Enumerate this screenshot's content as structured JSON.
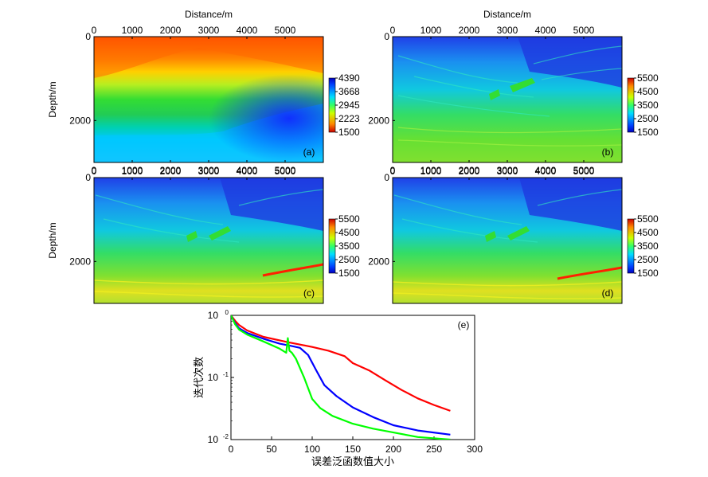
{
  "chart_data": [
    {
      "type": "heatmap",
      "panel_label": "(a)",
      "xlabel": "Distance/m",
      "ylabel": "Depth/m",
      "x_ticks": [
        "0",
        "1000",
        "2000",
        "3000",
        "4000",
        "5000"
      ],
      "y_ticks": [
        "0",
        "2000"
      ],
      "xlim": [
        0,
        6000
      ],
      "ylim": [
        3000,
        0
      ],
      "colorbar_ticks": [
        "4390",
        "3668",
        "2945",
        "2223",
        "1500"
      ],
      "colorbar_range": [
        1500,
        4390
      ],
      "colorbar_reversed": true,
      "colormap": "jet"
    },
    {
      "type": "heatmap",
      "panel_label": "(b)",
      "xlabel": "Distance/m",
      "ylabel": "",
      "x_ticks": [
        "0",
        "1000",
        "2000",
        "3000",
        "4000",
        "5000"
      ],
      "y_ticks": [
        "0",
        "2000"
      ],
      "xlim": [
        0,
        6000
      ],
      "ylim": [
        3000,
        0
      ],
      "colorbar_ticks": [
        "5500",
        "4500",
        "3500",
        "2500",
        "1500"
      ],
      "colorbar_range": [
        1500,
        5500
      ],
      "colorbar_reversed": false,
      "colormap": "jet"
    },
    {
      "type": "heatmap",
      "panel_label": "(c)",
      "xlabel": "",
      "ylabel": "Depth/m",
      "x_ticks": [
        "0",
        "1000",
        "2000",
        "3000",
        "4000",
        "5000"
      ],
      "y_ticks": [
        "0",
        "2000"
      ],
      "xlim": [
        0,
        6000
      ],
      "ylim": [
        3000,
        0
      ],
      "colorbar_ticks": [
        "5500",
        "4500",
        "3500",
        "2500",
        "1500"
      ],
      "colorbar_range": [
        1500,
        5500
      ],
      "colorbar_reversed": false,
      "colormap": "jet"
    },
    {
      "type": "heatmap",
      "panel_label": "(d)",
      "xlabel": "",
      "ylabel": "",
      "x_ticks": [
        "0",
        "1000",
        "2000",
        "3000",
        "4000",
        "5000"
      ],
      "y_ticks": [
        "0",
        "2000"
      ],
      "xlim": [
        0,
        6000
      ],
      "ylim": [
        3000,
        0
      ],
      "colorbar_ticks": [
        "5500",
        "4500",
        "3500",
        "2500",
        "1500"
      ],
      "colorbar_range": [
        1500,
        5500
      ],
      "colorbar_reversed": false,
      "colormap": "jet"
    },
    {
      "type": "line",
      "panel_label": "(e)",
      "xlabel": "误差泛函数值大小",
      "ylabel": "迭代次数",
      "xlim": [
        0,
        300
      ],
      "ylim": [
        0.01,
        1
      ],
      "yscale": "log",
      "x_ticks": [
        "0",
        "50",
        "100",
        "150",
        "200",
        "250",
        "300"
      ],
      "y_ticks": [
        {
          "value": 1,
          "label": "10",
          "exp": "0"
        },
        {
          "value": 0.1,
          "label": "10",
          "exp": "-1"
        },
        {
          "value": 0.01,
          "label": "10",
          "exp": "-2"
        }
      ],
      "series": [
        {
          "color": "#ff0000",
          "x": [
            0,
            5,
            10,
            20,
            40,
            70,
            100,
            120,
            140,
            150,
            170,
            190,
            210,
            230,
            250,
            270
          ],
          "y": [
            1.0,
            0.82,
            0.7,
            0.57,
            0.45,
            0.37,
            0.31,
            0.27,
            0.22,
            0.17,
            0.13,
            0.09,
            0.063,
            0.046,
            0.036,
            0.029
          ]
        },
        {
          "color": "#0000ff",
          "x": [
            0,
            5,
            10,
            20,
            40,
            60,
            70,
            75,
            85,
            95,
            105,
            115,
            130,
            150,
            175,
            200,
            230,
            270
          ],
          "y": [
            1.0,
            0.75,
            0.62,
            0.52,
            0.42,
            0.35,
            0.33,
            0.32,
            0.3,
            0.23,
            0.13,
            0.075,
            0.05,
            0.033,
            0.023,
            0.017,
            0.014,
            0.012
          ]
        },
        {
          "color": "#00ff00",
          "x": [
            0,
            5,
            10,
            20,
            40,
            60,
            68,
            70,
            72,
            75,
            80,
            90,
            100,
            110,
            125,
            150,
            175,
            200,
            230,
            270
          ],
          "y": [
            1.0,
            0.72,
            0.59,
            0.49,
            0.38,
            0.29,
            0.25,
            0.43,
            0.27,
            0.25,
            0.2,
            0.1,
            0.045,
            0.032,
            0.024,
            0.018,
            0.015,
            0.013,
            0.011,
            0.01
          ]
        }
      ]
    }
  ]
}
